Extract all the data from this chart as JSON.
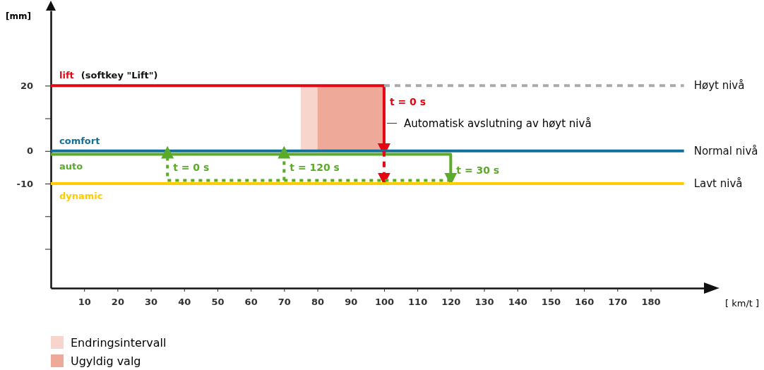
{
  "chart_data": {
    "type": "line",
    "xlabel": "[ km/t ]",
    "ylabel": "[mm]",
    "xlim": [
      0,
      196
    ],
    "xticks": [
      10,
      20,
      30,
      40,
      50,
      60,
      70,
      80,
      90,
      100,
      110,
      120,
      130,
      140,
      150,
      160,
      170,
      180
    ],
    "ylim": [
      -42,
      43
    ],
    "yticks": [
      {
        "value": -30,
        "label": null
      },
      {
        "value": -20,
        "label": null
      },
      -10,
      0,
      {
        "value": 10,
        "label": null
      },
      20
    ],
    "grid": false,
    "legend": "bottom left",
    "series": [
      {
        "name": "lift",
        "color": "#e30613",
        "x": [
          0,
          100,
          100
        ],
        "values": [
          20,
          20,
          0
        ]
      },
      {
        "color": "#aaaaaa",
        "x": [
          100,
          190
        ],
        "values": [
          20,
          20
        ],
        "line_style": "dashed"
      },
      {
        "name": "comfort",
        "color": "#14709a",
        "x": [
          0,
          190
        ],
        "values": [
          0,
          0
        ]
      },
      {
        "name": "auto",
        "color": "#5aab2a",
        "x": [
          0,
          120,
          120
        ],
        "values": [
          -1,
          -1,
          -9
        ]
      },
      {
        "color": "#e30613",
        "x": [
          100,
          100
        ],
        "values": [
          0,
          -9
        ],
        "line_style": "dashed"
      },
      {
        "color": "#5aab2a",
        "x": [
          120,
          35,
          35
        ],
        "values": [
          -9,
          -9,
          0
        ],
        "line_style": "dotted"
      },
      {
        "color": "#5aab2a",
        "x": [
          70,
          70
        ],
        "values": [
          -9,
          0
        ],
        "line_style": "dotted"
      },
      {
        "name": "dynamic",
        "color": "#ffcc00",
        "x": [
          0,
          190
        ],
        "values": [
          -10,
          -10
        ]
      }
    ],
    "bands": [
      {
        "axis": "x",
        "from": 75,
        "to": 80,
        "label": "Endringsintervall",
        "color": "#f8d5cc"
      },
      {
        "axis": "x",
        "from": 80,
        "to": 100,
        "label": "Ugyldig valg",
        "color": "#eea999"
      }
    ],
    "annotations": [
      "(softkey \"Lift\")",
      "Automatisk avslutning av høyt nivå",
      {
        "text": "t = 0 s",
        "x": 100,
        "y": 20
      },
      {
        "text": "t = 0 s",
        "x": 35,
        "y": 0
      },
      {
        "text": "t = 120 s",
        "x": 70,
        "y": 0
      },
      {
        "text": "t = 30 s",
        "x": 120,
        "y": -1
      },
      {
        "text": "Høyt nivå",
        "x": 190,
        "y": 20
      },
      {
        "text": "Normal nivå",
        "x": 190,
        "y": 0
      },
      {
        "text": "Lavt nivå",
        "x": 190,
        "y": -10
      }
    ]
  }
}
